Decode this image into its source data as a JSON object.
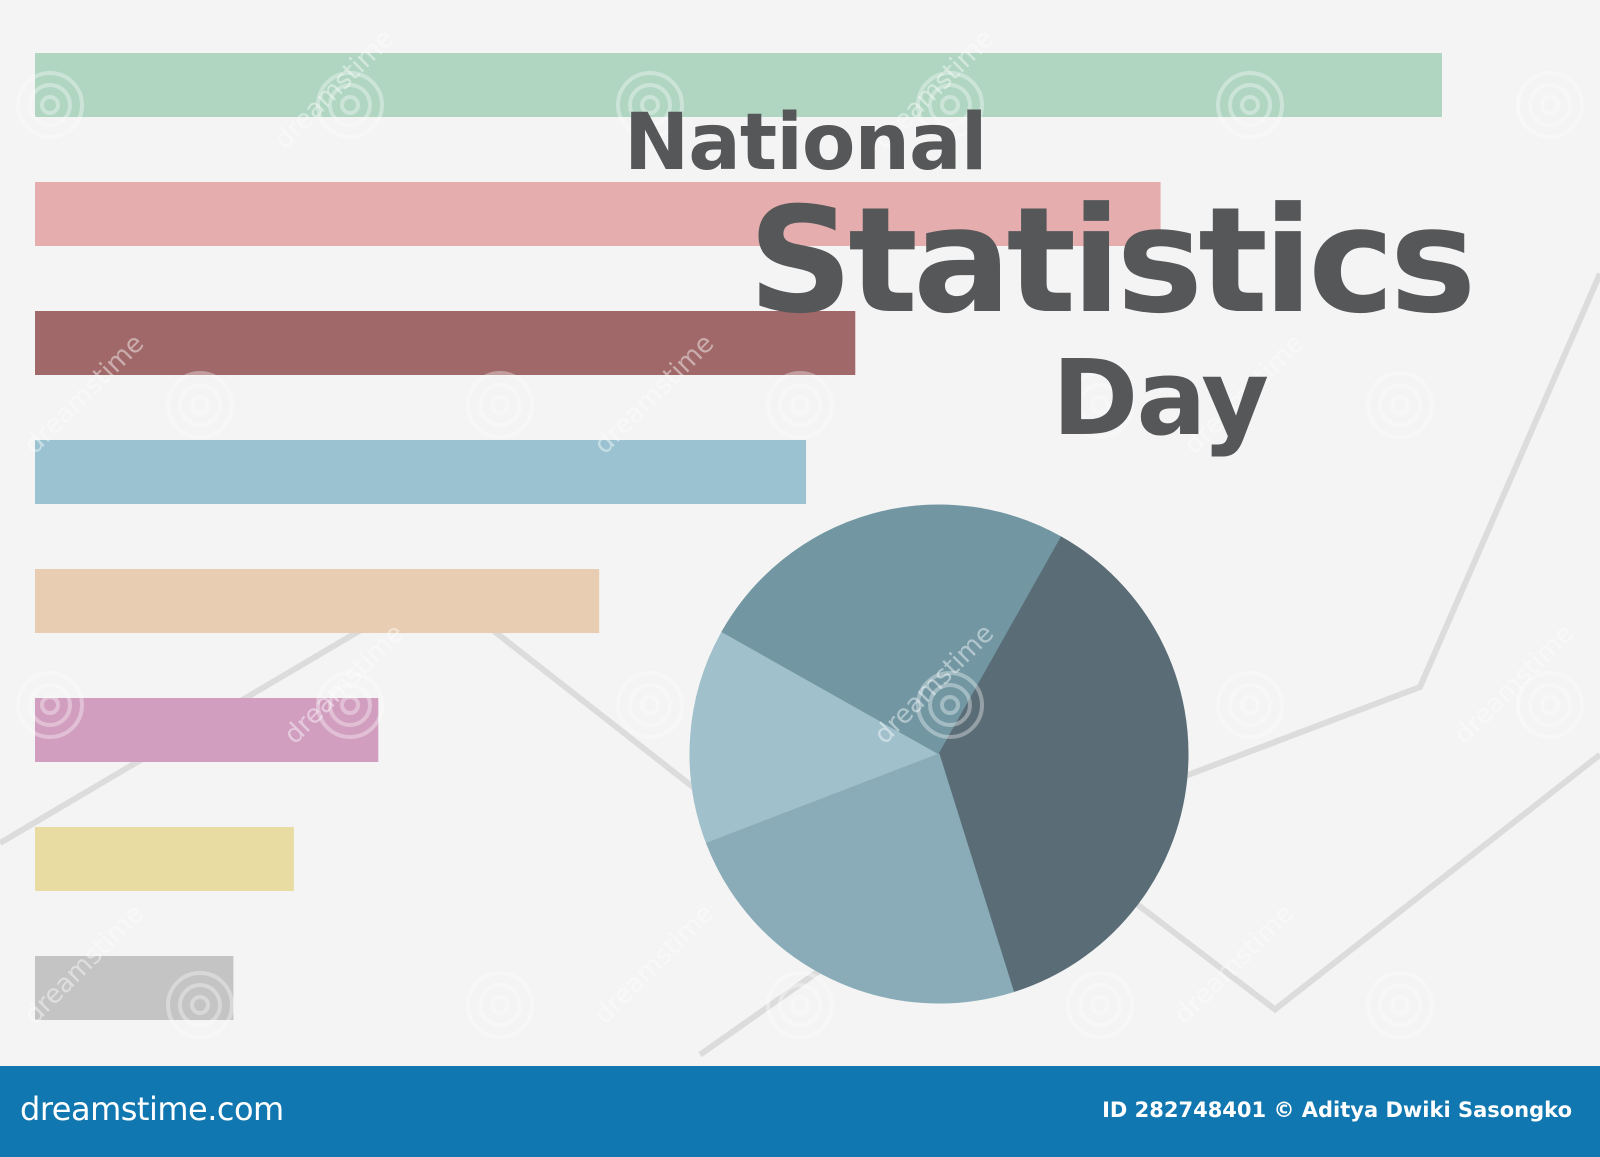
{
  "title": {
    "line1": "National",
    "line2": "Statistics",
    "line3": "Day"
  },
  "chart_data": [
    {
      "type": "bar",
      "orientation": "horizontal",
      "values": [
        100,
        80,
        58.3,
        54.8,
        40.1,
        24.4,
        18.4,
        14.1
      ],
      "colors": [
        "#b0d6c2",
        "#e5adad",
        "#a06868",
        "#9ac2d0",
        "#e8cdb2",
        "#d19ebf",
        "#e8dca2",
        "#c4c4c4"
      ]
    },
    {
      "type": "pie",
      "values": [
        14,
        25,
        37,
        24
      ],
      "colors": [
        "#a0c0cb",
        "#7297a3",
        "#5a6d77",
        "#89acb8"
      ]
    },
    {
      "type": "line",
      "series": [
        {
          "values": [
            15,
            48,
            7,
            35,
            88
          ]
        },
        {
          "values": [
            2,
            43,
            10,
            55
          ]
        }
      ],
      "color": "#dcdcdc"
    }
  ],
  "watermark": {
    "text": "dreamstime"
  },
  "footer": {
    "logo_text": "dreamstime.com",
    "credit_text": "ID 282748401 © Aditya Dwiki Sasongko"
  },
  "colors": {
    "background": "#f4f4f4",
    "title": "#555759",
    "footer": "#1177b0"
  }
}
